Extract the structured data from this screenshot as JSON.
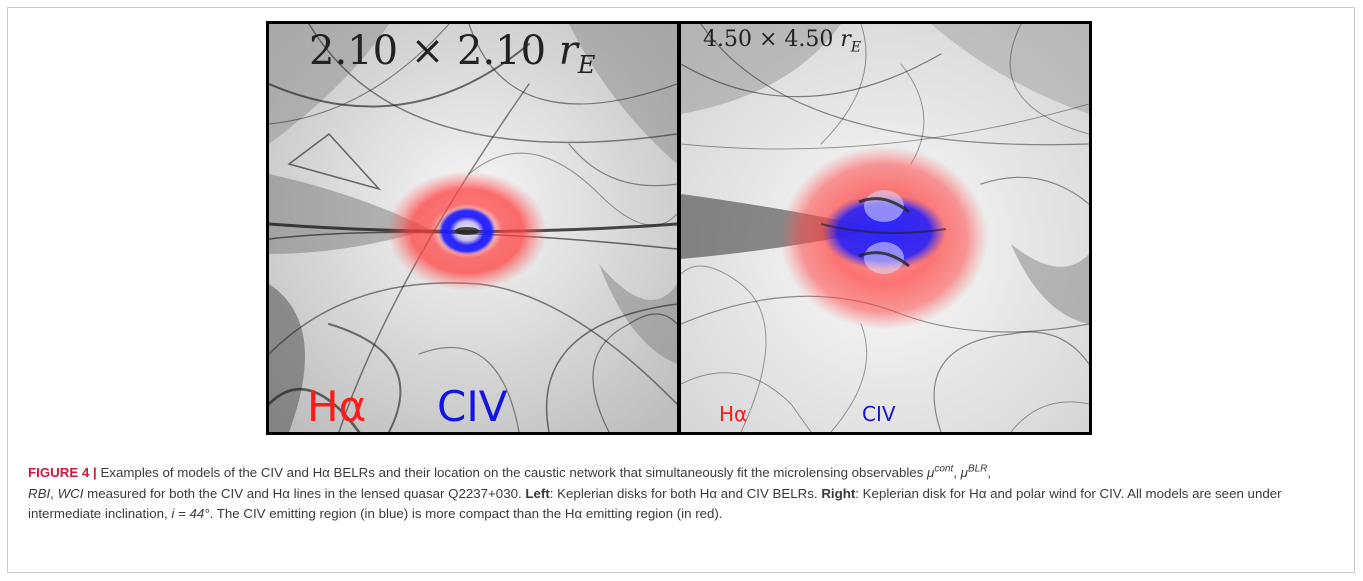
{
  "figure": {
    "panels": [
      {
        "id": "left",
        "scale_label": "2.10 × 2.10 rE",
        "scale_number": "2.10 × 2.10",
        "scale_unit": "r",
        "scale_sub": "E",
        "line_labels": [
          "Hα",
          "CIV"
        ]
      },
      {
        "id": "right",
        "scale_label": "4.50 × 4.50 rE",
        "scale_number": "4.50 × 4.50",
        "scale_unit": "r",
        "scale_sub": "E",
        "line_labels": [
          "Hα",
          "CIV"
        ]
      }
    ],
    "colors": {
      "halpha": "#ff1a1a",
      "civ": "#1414e0",
      "caption_label": "#d6163c"
    }
  },
  "caption": {
    "label": "FIGURE 4 |",
    "p1": " Examples of models of the CIV and Hα BELRs and their location on the caustic network that simultaneously fit the microlensing observables ",
    "mu": "μ",
    "cont": "cont",
    "comma1": ", ",
    "blr": "BLR",
    "comma2": ",",
    "rbi": "RBI",
    "comma3": ", ",
    "wci": "WCI",
    "p2": " measured for both the CIV and Hα lines in the lensed quasar Q2237+030. ",
    "left_word": "Left",
    "p3": ": Keplerian disks for both Hα and CIV BELRs. ",
    "right_word": "Right",
    "p4": ": Keplerian disk for Hα and polar wind for CIV. All models are seen under intermediate inclination, ",
    "incl": "i = 44°",
    "p5": ". The CIV emitting region (in blue) is more compact than the Hα emitting region (in red)."
  }
}
